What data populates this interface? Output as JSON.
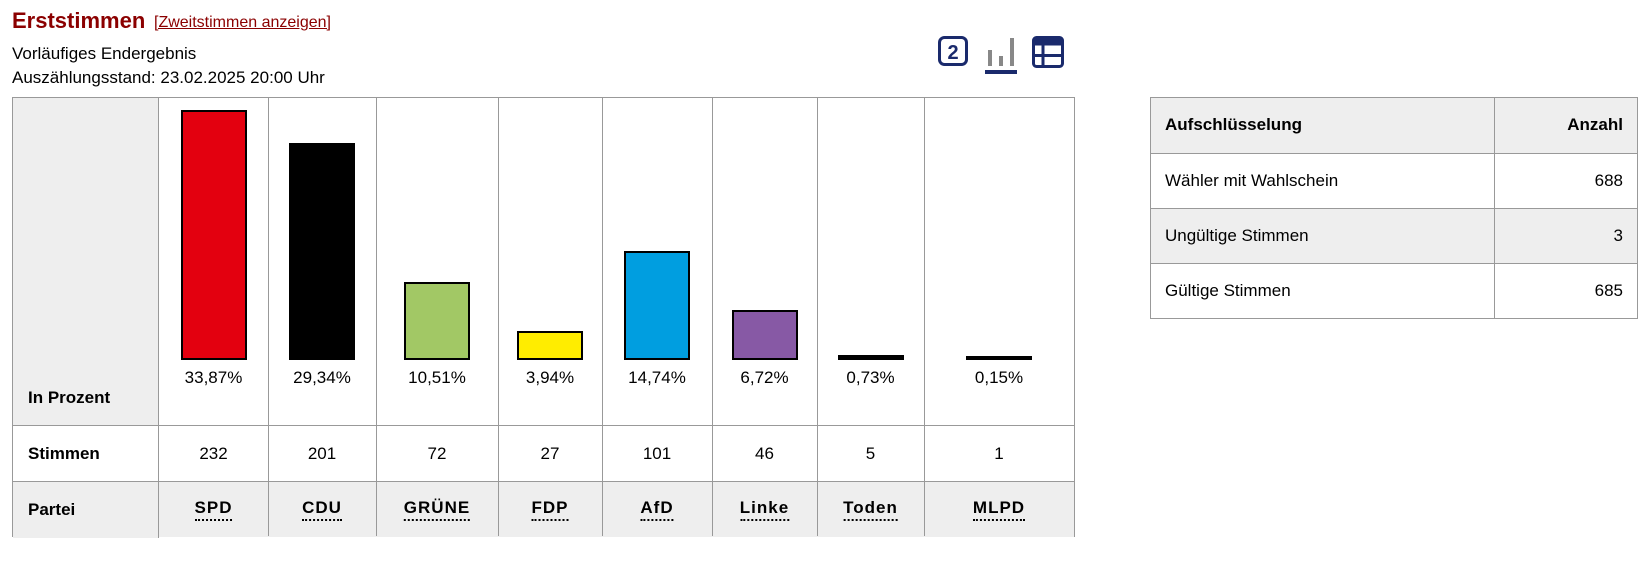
{
  "header": {
    "title": "Erststimmen",
    "toggle_link": "[Zweitstimmen anzeigen]",
    "status_line": "Vorläufiges Endergebnis",
    "count_line": "Auszählungsstand: 23.02.2025 20:00 Uhr"
  },
  "view_icons": {
    "number_icon_text": "2",
    "active_view": "bar-chart"
  },
  "chart_data": {
    "type": "bar",
    "categories": [
      "SPD",
      "CDU",
      "GRÜNE",
      "FDP",
      "AfD",
      "Linke",
      "Toden",
      "MLPD"
    ],
    "values": [
      33.87,
      29.34,
      10.51,
      3.94,
      14.74,
      6.72,
      0.73,
      0.15
    ],
    "value_labels": [
      "33,87%",
      "29,34%",
      "10,51%",
      "3,94%",
      "14,74%",
      "6,72%",
      "0,73%",
      "0,15%"
    ],
    "votes": [
      "232",
      "201",
      "72",
      "27",
      "101",
      "46",
      "5",
      "1"
    ],
    "colors": [
      "#e3000f",
      "#000000",
      "#a2c865",
      "#ffed00",
      "#009ee0",
      "#8759a5",
      "#000000",
      "#000000"
    ],
    "title": "",
    "xlabel": "",
    "ylabel": "",
    "ylim": [
      0,
      33.87
    ],
    "grid": false,
    "legend": "none"
  },
  "table_rows": {
    "percent_label": "In Prozent",
    "votes_label": "Stimmen",
    "party_label": "Partei"
  },
  "breakdown": {
    "header": [
      "Aufschlüsselung",
      "Anzahl"
    ],
    "rows": [
      {
        "label": "Wähler mit Wahlschein",
        "value": "688"
      },
      {
        "label": "Ungültige Stimmen",
        "value": "3"
      },
      {
        "label": "Gültige Stimmen",
        "value": "685"
      }
    ]
  }
}
